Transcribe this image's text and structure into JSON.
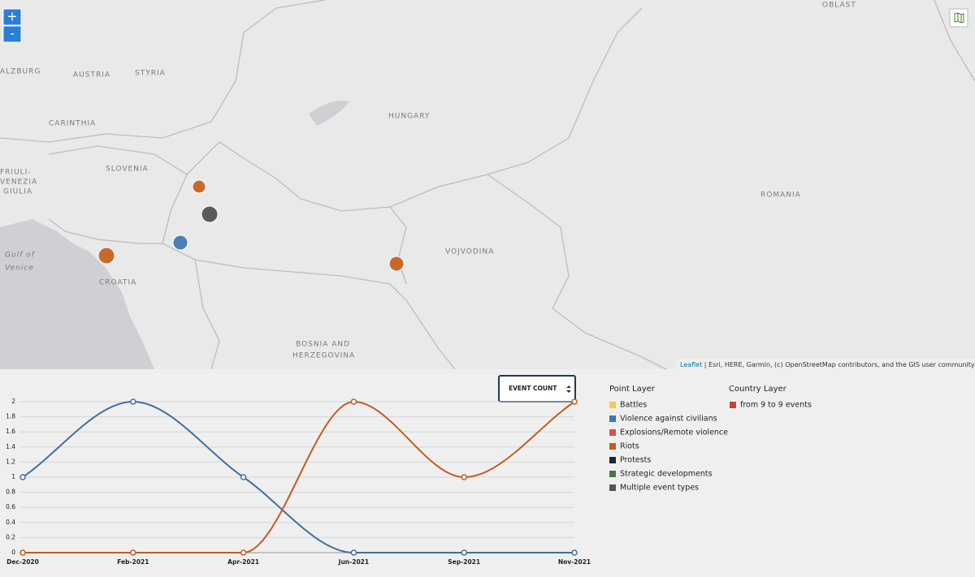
{
  "map": {
    "zoom_in": "+",
    "zoom_out": "-",
    "labels": [
      "ALZBURG",
      "AUSTRIA",
      "STYRIA",
      "CARINTHIA",
      "SLOVENIA",
      "FRIULI-",
      "VENEZIA",
      "GIULIA",
      "Gulf of",
      "Venice",
      "CROATIA",
      "BOSNIA AND",
      "HERZEGOVINA",
      "HUNGARY",
      "VOJVODINA",
      "ROMANIA",
      "OBLAST"
    ],
    "attribution_link": "Leaflet",
    "attribution_text": "| Esri, HERE, Garmin, (c) OpenStreetMap contributors, and the GIS user community"
  },
  "selector": "EVENT COUNT",
  "chart_data": {
    "type": "line",
    "categories": [
      "Dec-2020",
      "Feb-2021",
      "Apr-2021",
      "Jun-2021",
      "Sep-2021",
      "Nov-2021"
    ],
    "series": [
      {
        "color": "#3e6f9e",
        "values": [
          1,
          2,
          1,
          0,
          0,
          0
        ]
      },
      {
        "color": "#c65b1f",
        "values": [
          0,
          0,
          0,
          2,
          1,
          2
        ]
      }
    ],
    "ylim": [
      0,
      2
    ],
    "yticks": [
      0,
      0.2,
      0.4,
      0.6,
      0.8,
      1,
      1.2,
      1.4,
      1.6,
      1.8,
      2
    ],
    "grid": true
  },
  "legend": {
    "point_title": "Point Layer",
    "point_items": [
      {
        "name": "Battles",
        "color": "#f2c94c"
      },
      {
        "name": "Violence against civilians",
        "color": "#3b78b0"
      },
      {
        "name": "Explosions/Remote violence",
        "color": "#d9534f"
      },
      {
        "name": "Riots",
        "color": "#c85a1e"
      },
      {
        "name": "Protests",
        "color": "#1c2833"
      },
      {
        "name": "Strategic developments",
        "color": "#4a7a3a"
      },
      {
        "name": "Multiple event types",
        "color": "#555555"
      }
    ],
    "country_title": "Country Layer",
    "country_items": [
      {
        "name": "from 9 to 9 events",
        "color": "#c0462a"
      }
    ]
  }
}
